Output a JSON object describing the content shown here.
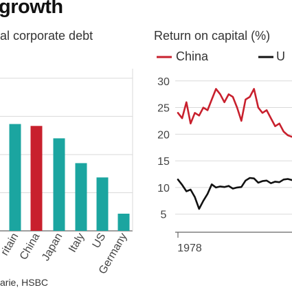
{
  "headline": "growth",
  "left_title": "al corporate debt",
  "right_title": "Return on capital (%)",
  "source_text": "arie, HSBC",
  "colors": {
    "teal": "#1ba5a0",
    "red": "#c8202d",
    "black": "#111111",
    "grid": "#d9d9d9"
  },
  "chart_data": [
    {
      "type": "bar",
      "categories": [
        "ritain",
        "China",
        "Japan",
        "Italy",
        "US",
        "Germany"
      ],
      "values": [
        112,
        110,
        97,
        71,
        56,
        18
      ],
      "highlight": "China",
      "ylim": [
        0,
        170
      ],
      "grid": true
    },
    {
      "type": "line",
      "title": "Return on capital (%)",
      "x": [
        1978,
        1979,
        1980,
        1981,
        1982,
        1983,
        1984,
        1985,
        1986,
        1987,
        1988,
        1989,
        1990,
        1991,
        1992,
        1993,
        1994,
        1995,
        1996,
        1997,
        1998,
        1999,
        2000,
        2001,
        2002,
        2003,
        2004,
        2005,
        2006,
        2007
      ],
      "x_tick_labels": [
        "1978"
      ],
      "yticks": [
        5,
        10,
        15,
        20,
        25,
        30
      ],
      "ylim": [
        2,
        31
      ],
      "grid": true,
      "legend": {
        "placement": "top",
        "entries": [
          "China",
          "U"
        ]
      },
      "series": [
        {
          "name": "China",
          "color": "#c8202d",
          "values": [
            24,
            23,
            26,
            22,
            24,
            23.5,
            25,
            24.5,
            26.5,
            28.5,
            27.5,
            26,
            27.5,
            27,
            25,
            22.5,
            26.5,
            27,
            28.5,
            25,
            24,
            24.5,
            23,
            21.5,
            22,
            20.5,
            19.8,
            19.5,
            null,
            null
          ]
        },
        {
          "name": "U",
          "color": "#111111",
          "values": [
            11.5,
            10.5,
            9.3,
            9.6,
            8.2,
            6.0,
            7.5,
            8.8,
            10.6,
            10.0,
            10.2,
            10.1,
            10.3,
            9.8,
            10.0,
            10.1,
            11.3,
            11.8,
            11.7,
            10.9,
            11.2,
            11.3,
            10.8,
            11.1,
            11.0,
            11.5,
            11.6,
            11.4,
            null,
            null
          ]
        }
      ]
    }
  ]
}
